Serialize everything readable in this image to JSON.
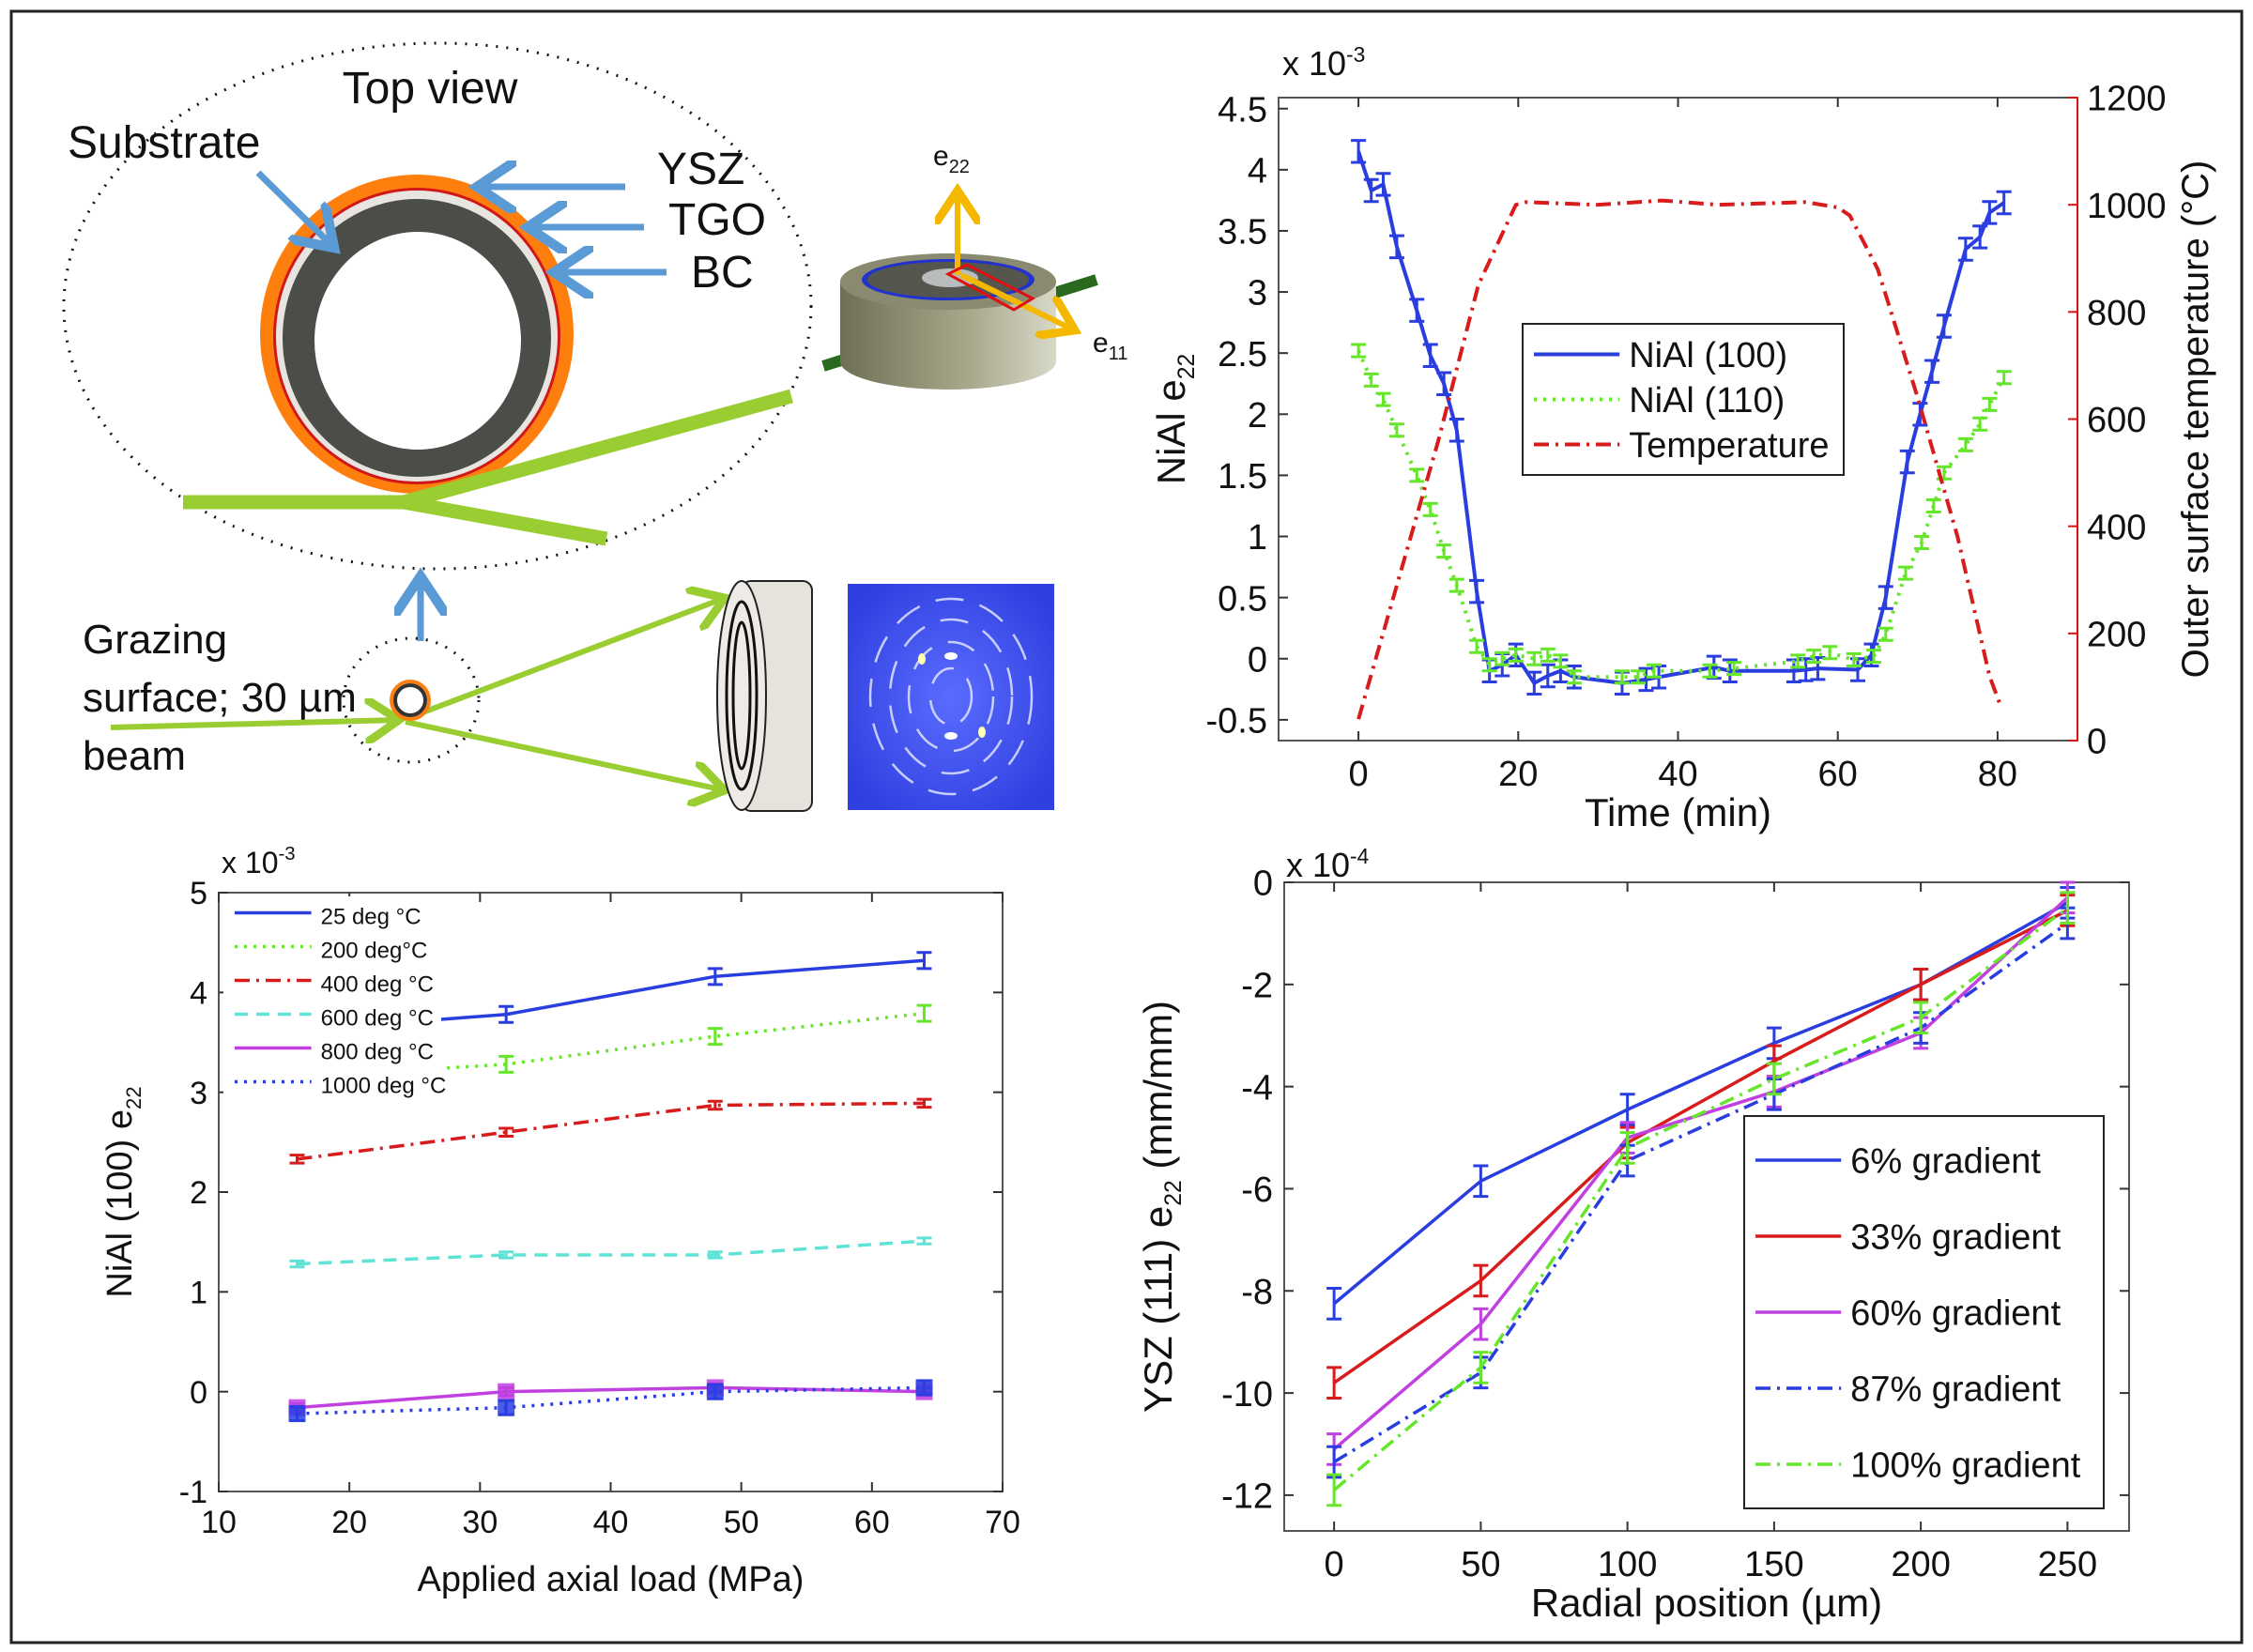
{
  "diagram": {
    "top_view": "Top view",
    "substrate": "Substrate",
    "ysz": "YSZ",
    "tgo": "TGO",
    "bc": "BC",
    "e22_base": "e",
    "e22_sub": "22",
    "e11_base": "e",
    "e11_sub": "11",
    "grazing_line1": "Grazing",
    "grazing_line2": "surface; 30 µm",
    "grazing_line3": "beam",
    "colors": {
      "beam": "#9acd32",
      "ysz": "#ff7f0e",
      "substrate": "#4a4d48",
      "arrow": "#5b9bd5",
      "axis_arrow": "#f5b800",
      "detector_image": "#3f51e6"
    }
  },
  "chart_data": [
    {
      "id": "time",
      "type": "line",
      "xlabel": "Time (min)",
      "ylabel_base": "NiAl  e",
      "ylabel_sub": "22",
      "y2label": "Outer surface temperature (°C)",
      "multiplier": "x 10",
      "multiplier_exp": "-3",
      "xlim": [
        -10,
        90
      ],
      "ylim": [
        -0.67,
        4.59
      ],
      "y2lim": [
        0,
        1200
      ],
      "xticks": [
        0,
        20,
        40,
        60,
        80
      ],
      "yticks": [
        -0.5,
        0,
        0.5,
        1,
        1.5,
        2,
        2.5,
        3,
        3.5,
        4,
        4.5
      ],
      "y2ticks": [
        0,
        200,
        400,
        600,
        800,
        1000,
        1200
      ],
      "y2color": "#dd1111",
      "grid": false,
      "legend": "center",
      "series": [
        {
          "name": "NiAl (100)",
          "color": "#2a3ee0",
          "dash": "solid",
          "yerr": 0.09,
          "axis": "left",
          "x": [
            0,
            1.6,
            3.1,
            4.8,
            7.3,
            9,
            10.7,
            12.3,
            14.8,
            16.4,
            18,
            19.7,
            22,
            23.7,
            25.3,
            27,
            33,
            36,
            37.6,
            44.5,
            46.5,
            54.5,
            56,
            57.5,
            62.5,
            64.2,
            66,
            68.7,
            70.3,
            71.8,
            73.3,
            76,
            77.8,
            79,
            80.8
          ],
          "y": [
            4.15,
            3.83,
            3.88,
            3.37,
            2.85,
            2.48,
            2.25,
            1.87,
            0.55,
            -0.1,
            -0.05,
            0.03,
            -0.2,
            -0.14,
            -0.1,
            -0.15,
            -0.2,
            -0.17,
            -0.15,
            -0.07,
            -0.1,
            -0.1,
            -0.09,
            -0.08,
            -0.09,
            0.03,
            0.5,
            1.61,
            2.0,
            2.35,
            2.72,
            3.35,
            3.45,
            3.65,
            3.73
          ]
        },
        {
          "name": "NiAl (110)",
          "color": "#66e62a",
          "dash": "dotted",
          "yerr": 0.05,
          "axis": "left",
          "x": [
            0,
            1.6,
            3.1,
            4.8,
            7.3,
            9,
            10.7,
            12.3,
            14.8,
            16.4,
            18,
            19.7,
            22,
            23.7,
            25.3,
            27,
            33,
            35,
            37,
            44,
            47,
            55,
            57,
            59,
            62,
            64.5,
            66,
            68.5,
            70.5,
            72,
            73.3,
            76,
            77.8,
            79,
            80.8
          ],
          "y": [
            2.52,
            2.28,
            2.12,
            1.87,
            1.5,
            1.22,
            0.88,
            0.6,
            0.1,
            -0.05,
            0.0,
            0.03,
            0.0,
            0.03,
            -0.02,
            -0.15,
            -0.15,
            -0.15,
            -0.1,
            -0.1,
            -0.08,
            -0.02,
            0.02,
            0.05,
            -0.01,
            0.02,
            0.2,
            0.7,
            0.95,
            1.25,
            1.52,
            1.75,
            1.92,
            2.08,
            2.3
          ]
        },
        {
          "name": "Temperature",
          "color": "#d81b1b",
          "dash": "dashdot",
          "axis": "right",
          "x": [
            0,
            5,
            10,
            15,
            19.7,
            21,
            30,
            38,
            45,
            56,
            60,
            61.5,
            65,
            70,
            75,
            79,
            80.5
          ],
          "y": [
            40,
            300,
            560,
            850,
            1000,
            1005,
            1000,
            1008,
            1000,
            1005,
            995,
            980,
            880,
            640,
            380,
            120,
            60
          ]
        }
      ]
    },
    {
      "id": "load",
      "type": "line",
      "xlabel": "Applied axial load (MPa)",
      "ylabel_base": "NiAl (100) e",
      "ylabel_sub": "22",
      "multiplier": "x 10",
      "multiplier_exp": "-3",
      "xlim": [
        10,
        70
      ],
      "ylim": [
        -1,
        5
      ],
      "xticks": [
        10,
        20,
        30,
        40,
        50,
        60,
        70
      ],
      "yticks": [
        -1,
        0,
        1,
        2,
        3,
        4,
        5
      ],
      "grid": false,
      "legend": "top-left",
      "series": [
        {
          "name": "25 deg °C",
          "color": "#2a3ee0",
          "dash": "solid",
          "yerr": 0.08,
          "x": [
            16,
            32,
            48,
            64
          ],
          "y": [
            3.62,
            3.78,
            4.16,
            4.32
          ]
        },
        {
          "name": "200 deg°C",
          "color": "#66e62a",
          "dash": "dotted",
          "yerr": 0.08,
          "x": [
            16,
            32,
            48,
            64
          ],
          "y": [
            3.15,
            3.28,
            3.56,
            3.79
          ]
        },
        {
          "name": "400 deg °C",
          "color": "#d81b1b",
          "dash": "dashdot",
          "yerr": 0.04,
          "x": [
            16,
            32,
            48,
            64
          ],
          "y": [
            2.33,
            2.6,
            2.87,
            2.89
          ]
        },
        {
          "name": "600 deg °C",
          "color": "#5fe3d6",
          "dash": "dashed",
          "yerr": 0.03,
          "x": [
            16,
            32,
            48,
            64
          ],
          "y": [
            1.28,
            1.37,
            1.37,
            1.51
          ]
        },
        {
          "name": "800 deg °C",
          "color": "#c040e0",
          "dash": "solid",
          "yerr": 0.04,
          "x": [
            16,
            32,
            48,
            64
          ],
          "y": [
            -0.16,
            0.0,
            0.04,
            0.0
          ]
        },
        {
          "name": "1000 deg °C",
          "color": "#2a3ee0",
          "dash": "dotted",
          "yerr": 0.07,
          "x": [
            16,
            32,
            48,
            64
          ],
          "y": [
            -0.22,
            -0.16,
            0.0,
            0.04
          ]
        }
      ]
    },
    {
      "id": "radial",
      "type": "line",
      "xlabel": "Radial position (µm)",
      "ylabel_base": "YSZ (111) e",
      "ylabel_sub": "22",
      "ylabel_tail": " (mm/mm)",
      "multiplier": "x 10",
      "multiplier_exp": "-4",
      "xlim": [
        -17,
        271
      ],
      "ylim": [
        -12.7,
        0
      ],
      "xticks": [
        0,
        50,
        100,
        150,
        200,
        250
      ],
      "yticks": [
        -12,
        -10,
        -8,
        -6,
        -4,
        -2,
        0
      ],
      "grid": false,
      "legend": "bottom-right",
      "series": [
        {
          "name": "6% gradient",
          "color": "#2a3ee0",
          "dash": "solid",
          "yerr": 0.3,
          "x": [
            0,
            50,
            100,
            150,
            200,
            250
          ],
          "y": [
            -8.25,
            -5.85,
            -4.45,
            -3.15,
            -2.0,
            -0.4
          ]
        },
        {
          "name": "33% gradient",
          "color": "#d81b1b",
          "dash": "solid",
          "yerr": 0.3,
          "x": [
            0,
            50,
            100,
            150,
            200,
            250
          ],
          "y": [
            -9.8,
            -7.8,
            -5.1,
            -3.5,
            -2.0,
            -0.55
          ]
        },
        {
          "name": "60% gradient",
          "color": "#c040e0",
          "dash": "solid",
          "yerr": 0.3,
          "x": [
            0,
            50,
            100,
            150,
            200,
            250
          ],
          "y": [
            -11.1,
            -8.65,
            -5.0,
            -4.1,
            -2.95,
            -0.3
          ]
        },
        {
          "name": "87% gradient",
          "color": "#2a3ee0",
          "dash": "dashdot",
          "yerr": 0.3,
          "x": [
            0,
            50,
            100,
            150,
            200,
            250
          ],
          "y": [
            -11.35,
            -9.6,
            -5.45,
            -4.15,
            -2.85,
            -0.8
          ]
        },
        {
          "name": "100% gradient",
          "color": "#66e62a",
          "dash": "dashdot",
          "yerr": 0.3,
          "x": [
            0,
            50,
            100,
            150,
            200,
            250
          ],
          "y": [
            -11.9,
            -9.5,
            -5.2,
            -3.85,
            -2.65,
            -0.5
          ]
        }
      ]
    }
  ]
}
